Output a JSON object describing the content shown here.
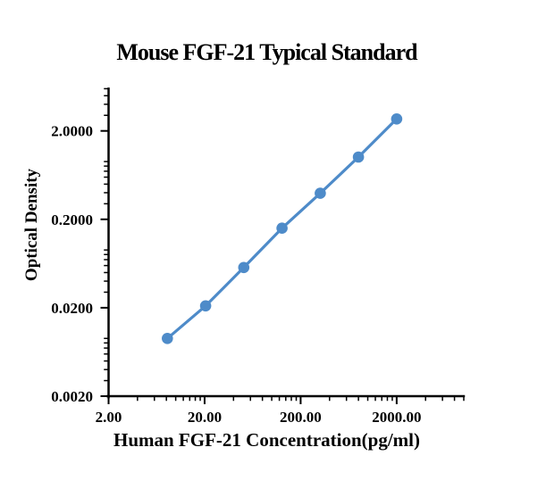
{
  "chart_data": {
    "type": "line",
    "title": "Mouse FGF-21 Typical Standard",
    "xlabel": "Human FGF-21 Concentration(pg/ml)",
    "ylabel": "Optical Density",
    "x_scale": "log",
    "y_scale": "log",
    "xlim": [
      2,
      10000
    ],
    "ylim": [
      0.002,
      6
    ],
    "grid": false,
    "legend": false,
    "x_ticks": [
      {
        "value": 2,
        "label": "2.00"
      },
      {
        "value": 20,
        "label": "20.00"
      },
      {
        "value": 200,
        "label": "200.00"
      },
      {
        "value": 2000,
        "label": "2000.00"
      }
    ],
    "y_ticks": [
      {
        "value": 0.002,
        "label": "0.0020"
      },
      {
        "value": 0.02,
        "label": "0.0200"
      },
      {
        "value": 0.2,
        "label": "0.2000"
      },
      {
        "value": 2,
        "label": "2.0000"
      }
    ],
    "series": [
      {
        "name": "Mouse FGF-21 Typical Standard",
        "x": [
          8.192,
          20.48,
          51.2,
          128,
          320,
          800,
          2000
        ],
        "y": [
          0.009,
          0.021,
          0.057,
          0.159,
          0.394,
          1.013,
          2.73
        ],
        "marker": "circle"
      }
    ]
  },
  "colors": {
    "background": "#FFFFFF",
    "axis": "#000000",
    "text": "#000000",
    "series": "#4E8BC9"
  }
}
